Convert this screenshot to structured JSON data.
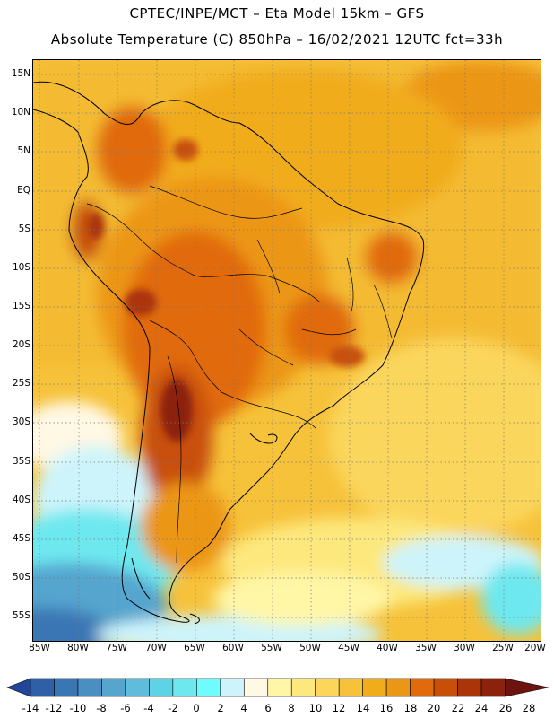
{
  "header": {
    "line1": "CPTEC/INPE/MCT –  Eta Model 15km – GFS",
    "line2": "Absolute Temperature (C) 850hPa – 16/02/2021 12UTC fct=33h"
  },
  "map": {
    "lat_labels": [
      "15N",
      "10N",
      "5N",
      "EQ",
      "5S",
      "10S",
      "15S",
      "20S",
      "25S",
      "30S",
      "35S",
      "40S",
      "45S",
      "50S",
      "55S"
    ],
    "lon_labels": [
      "85W",
      "80W",
      "75W",
      "70W",
      "65W",
      "60W",
      "55W",
      "50W",
      "45W",
      "40W",
      "35W",
      "30W",
      "25W",
      "20W"
    ]
  },
  "colorbar": {
    "labels": [
      "-14",
      "-12",
      "-10",
      "-8",
      "-6",
      "-4",
      "-2",
      "0",
      "2",
      "4",
      "6",
      "8",
      "10",
      "12",
      "14",
      "16",
      "18",
      "20",
      "22",
      "24",
      "26",
      "28"
    ],
    "colors": [
      "#23469a",
      "#2f5fa6",
      "#3a76b4",
      "#4a8ec2",
      "#55a5cf",
      "#5fbcdb",
      "#5fd3e6",
      "#6ee8ef",
      "#6ffcff",
      "#cdf4fb",
      "#fff8e4",
      "#fff6a6",
      "#fde87d",
      "#fbd65b",
      "#f6c23a",
      "#f1ac1b",
      "#ec9616",
      "#e16b0c",
      "#c84f08",
      "#ac3409",
      "#8c210c",
      "#6e1410"
    ]
  }
}
